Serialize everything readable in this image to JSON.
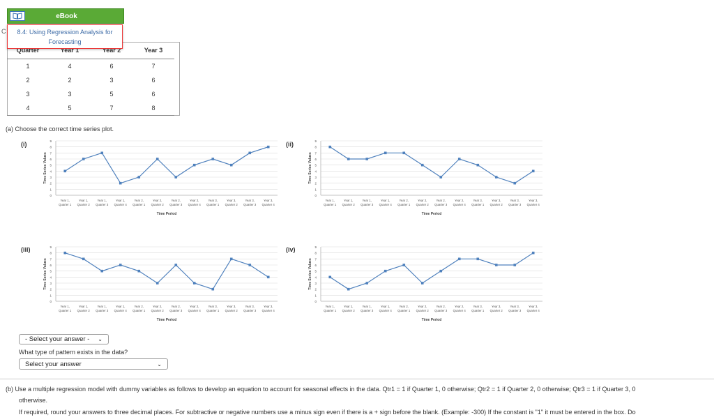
{
  "ebook": {
    "label": "eBook",
    "icon": "book-icon"
  },
  "side_letter": "C",
  "popup": {
    "line1": "8.4: Using Regression Analysis for",
    "line2": "Forecasting"
  },
  "table": {
    "headers": [
      "Quarter",
      "Year 1",
      "Year 2",
      "Year 3"
    ],
    "rows": [
      [
        "1",
        "4",
        "6",
        "7"
      ],
      [
        "2",
        "2",
        "3",
        "6"
      ],
      [
        "3",
        "3",
        "5",
        "6"
      ],
      [
        "4",
        "5",
        "7",
        "8"
      ]
    ]
  },
  "question_a": "(a) Choose the correct time series plot.",
  "options": [
    "(i)",
    "(ii)",
    "(iii)",
    "(iv)"
  ],
  "answer_select": "- Select your answer -",
  "pattern_question": "What type of pattern exists in the data?",
  "pattern_select": "Select your answer",
  "question_b_line1": "(b) Use a multiple regression model with dummy variables as follows to develop an equation to account for seasonal effects in the data. Qtr1 = 1 if Quarter 1, 0 otherwise; Qtr2 = 1 if Quarter 2, 0 otherwise; Qtr3 = 1 if Quarter 3, 0",
  "question_b_line2": "otherwise.",
  "question_b_line3": "If required, round your answers to three decimal places. For subtractive or negative numbers use a minus sign even if there is a + sign before the blank. (Example: -300) If the constant is \"1\" it must be entered in the box. Do",
  "colors": {
    "series": "#4f81bd",
    "grid": "#d9d9d9",
    "ebook_green": "#5aaa36"
  },
  "chart_data": [
    {
      "type": "line",
      "option": "(i)",
      "xlabel": "Time Period",
      "ylabel": "Time Series Values",
      "ylim": [
        0,
        9
      ],
      "categories": [
        "Year 1, Quarter 1",
        "Year 1, Quarter 2",
        "Year 1, Quarter 3",
        "Year 1, Quarter 4",
        "Year 2, Quarter 1",
        "Year 2, Quarter 2",
        "Year 2, Quarter 3",
        "Year 2, Quarter 4",
        "Year 3, Quarter 1",
        "Year 3, Quarter 2",
        "Year 3, Quarter 3",
        "Year 3, Quarter 4"
      ],
      "values": [
        4,
        6,
        7,
        2,
        3,
        6,
        3,
        5,
        6,
        5,
        7,
        8
      ]
    },
    {
      "type": "line",
      "option": "(ii)",
      "xlabel": "Time Period",
      "ylabel": "Time Series Values",
      "ylim": [
        0,
        9
      ],
      "categories": [
        "Year 1, Quarter 1",
        "Year 1, Quarter 2",
        "Year 1, Quarter 3",
        "Year 1, Quarter 4",
        "Year 2, Quarter 1",
        "Year 2, Quarter 2",
        "Year 2, Quarter 3",
        "Year 2, Quarter 4",
        "Year 3, Quarter 1",
        "Year 3, Quarter 2",
        "Year 3, Quarter 3",
        "Year 3, Quarter 4"
      ],
      "values": [
        8,
        6,
        6,
        7,
        7,
        5,
        3,
        6,
        5,
        3,
        2,
        4
      ]
    },
    {
      "type": "line",
      "option": "(iii)",
      "xlabel": "Time Period",
      "ylabel": "Time Series Values",
      "ylim": [
        0,
        9
      ],
      "categories": [
        "Year 1, Quarter 1",
        "Year 1, Quarter 2",
        "Year 1, Quarter 3",
        "Year 1, Quarter 4",
        "Year 2, Quarter 1",
        "Year 2, Quarter 2",
        "Year 2, Quarter 3",
        "Year 2, Quarter 4",
        "Year 3, Quarter 1",
        "Year 3, Quarter 2",
        "Year 3, Quarter 3",
        "Year 3, Quarter 4"
      ],
      "values": [
        8,
        7,
        5,
        6,
        5,
        3,
        6,
        3,
        2,
        7,
        6,
        4
      ]
    },
    {
      "type": "line",
      "option": "(iv)",
      "xlabel": "Time Period",
      "ylabel": "Time Series Values",
      "ylim": [
        0,
        9
      ],
      "categories": [
        "Year 1, Quarter 1",
        "Year 1, Quarter 2",
        "Year 1, Quarter 3",
        "Year 1, Quarter 4",
        "Year 2, Quarter 1",
        "Year 2, Quarter 2",
        "Year 2, Quarter 3",
        "Year 2, Quarter 4",
        "Year 3, Quarter 1",
        "Year 3, Quarter 2",
        "Year 3, Quarter 3",
        "Year 3, Quarter 4"
      ],
      "values": [
        4,
        2,
        3,
        5,
        6,
        3,
        5,
        7,
        7,
        6,
        6,
        8
      ]
    }
  ]
}
